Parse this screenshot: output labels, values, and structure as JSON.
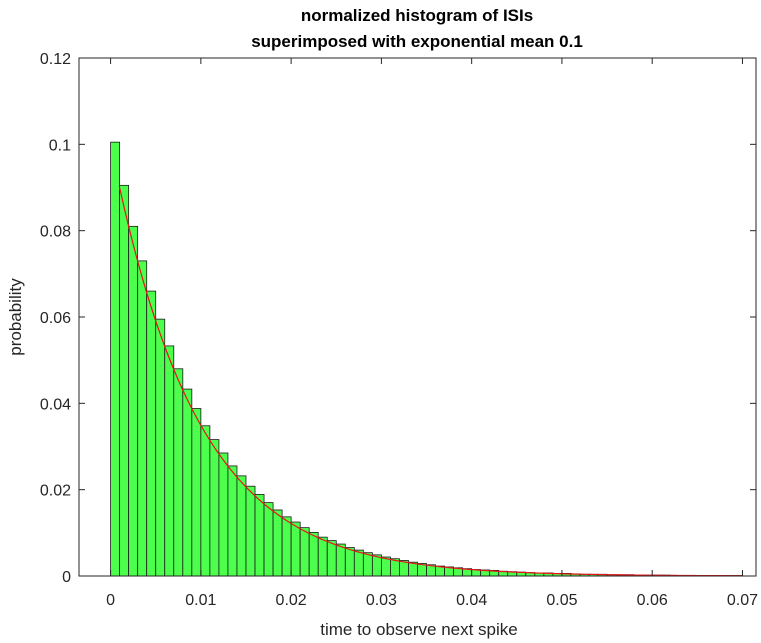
{
  "chart_data": {
    "type": "bar",
    "title": [
      "normalized histogram of ISIs",
      "superimposed with exponential mean 0.1"
    ],
    "xlabel": "time to observe next spike",
    "ylabel": "probability",
    "xlim": [
      -0.0035,
      0.0715
    ],
    "ylim": [
      0,
      0.12
    ],
    "xticks": [
      0,
      0.01,
      0.02,
      0.03,
      0.04,
      0.05,
      0.06,
      0.07
    ],
    "xtick_labels": [
      "0",
      "0.01",
      "0.02",
      "0.03",
      "0.04",
      "0.05",
      "0.06",
      "0.07"
    ],
    "yticks": [
      0,
      0.02,
      0.04,
      0.06,
      0.08,
      0.1,
      0.12
    ],
    "ytick_labels": [
      "0",
      "0.02",
      "0.04",
      "0.06",
      "0.08",
      "0.1",
      "0.12"
    ],
    "bin_width": 0.001,
    "bin_starts": [
      0,
      0.001,
      0.002,
      0.003,
      0.004,
      0.005,
      0.006,
      0.007,
      0.008,
      0.009,
      0.01,
      0.011,
      0.012,
      0.013,
      0.014,
      0.015,
      0.016,
      0.017,
      0.018,
      0.019,
      0.02,
      0.021,
      0.022,
      0.023,
      0.024,
      0.025,
      0.026,
      0.027,
      0.028,
      0.029,
      0.03,
      0.031,
      0.032,
      0.033,
      0.034,
      0.035,
      0.036,
      0.037,
      0.038,
      0.039,
      0.04,
      0.041,
      0.042,
      0.043,
      0.044,
      0.045,
      0.046,
      0.047,
      0.048,
      0.049,
      0.05,
      0.051,
      0.052,
      0.053,
      0.054,
      0.055,
      0.056,
      0.057,
      0.058,
      0.059,
      0.06,
      0.061,
      0.062,
      0.063,
      0.064,
      0.065,
      0.066,
      0.067,
      0.068,
      0.069
    ],
    "values": [
      0.1005,
      0.0905,
      0.081,
      0.073,
      0.066,
      0.0595,
      0.0533,
      0.048,
      0.0433,
      0.0388,
      0.0348,
      0.0316,
      0.0285,
      0.0255,
      0.0232,
      0.0208,
      0.0189,
      0.017,
      0.0153,
      0.0137,
      0.0125,
      0.0112,
      0.0101,
      0.009,
      0.0082,
      0.0074,
      0.0066,
      0.006,
      0.0054,
      0.0049,
      0.0044,
      0.004,
      0.0036,
      0.0032,
      0.0029,
      0.0026,
      0.0023,
      0.0021,
      0.0019,
      0.0017,
      0.0015,
      0.0014,
      0.0013,
      0.0011,
      0.001,
      0.0009,
      0.0008,
      0.0007,
      0.0007,
      0.0006,
      0.0006,
      0.0005,
      0.0004,
      0.0004,
      0.0004,
      0.0003,
      0.0003,
      0.0003,
      0.0002,
      0.0002,
      0.0002,
      0.0002,
      0.0001,
      0.0001,
      0.0001,
      0.0001,
      0.0001,
      0.0001,
      0.0001,
      0.0001
    ],
    "bar_color": "#4dff4d",
    "bar_edge_color": "#1a1a1a",
    "curve": {
      "label": "exponential mean 0.1",
      "amplitude": 0.1,
      "decay_scale": 0.0095,
      "x_start": 0.001,
      "x_end": 0.07,
      "color": "#e8161a"
    },
    "axes_color": "#262626"
  }
}
